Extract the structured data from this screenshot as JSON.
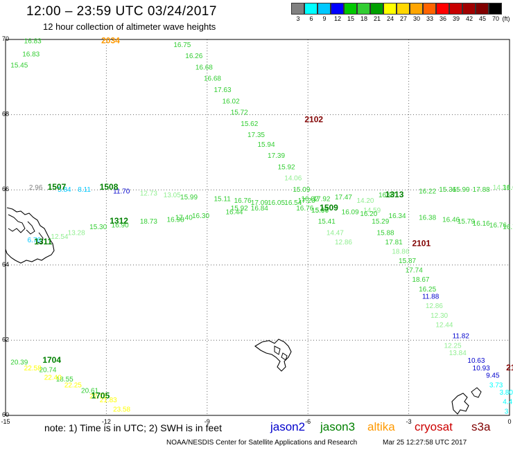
{
  "title": "12:00 – 23:59 UTC 03/24/2017",
  "subtitle": "12 hour collection of altimeter wave heights",
  "legend": {
    "unit": "(ft)",
    "levels": [
      "3",
      "6",
      "9",
      "12",
      "15",
      "18",
      "21",
      "24",
      "27",
      "30",
      "33",
      "36",
      "39",
      "42",
      "45",
      "70"
    ],
    "colors": [
      "#808080",
      "#00ffff",
      "#00c8ff",
      "#0000ff",
      "#00c800",
      "#32cd32",
      "#00a000",
      "#ffff00",
      "#ffd700",
      "#ffa500",
      "#ff6400",
      "#ff0000",
      "#c80000",
      "#a00000",
      "#800000",
      "#000000"
    ]
  },
  "axes": {
    "lon_ticks": [
      "-15",
      "-12",
      "-9",
      "-6",
      "-3",
      "0"
    ],
    "lat_ticks": [
      "70",
      "68",
      "66",
      "64",
      "62",
      "60"
    ]
  },
  "note": "note: 1) Time is in UTC; 2) SWH is in feet",
  "satellites": [
    {
      "name": "jason2",
      "color": "#0000cc"
    },
    {
      "name": "jason3",
      "color": "#008000"
    },
    {
      "name": "altika",
      "color": "#ff9900"
    },
    {
      "name": "cryosat",
      "color": "#cc0000"
    },
    {
      "name": "s3a",
      "color": "#800000"
    }
  ],
  "credit": "NOAA/NESDIS Center for Satellite Applications and Research",
  "timestamp": "Mar 25 12:27:58 UTC 2017",
  "passes": [
    {
      "label": "2034",
      "lon": -12.15,
      "lat": 69.9,
      "color": "#ff9900"
    },
    {
      "label": "2102",
      "lon": -6.1,
      "lat": 67.8,
      "color": "#800000"
    },
    {
      "label": "1507",
      "lon": -13.75,
      "lat": 66.0,
      "color": "#008000"
    },
    {
      "label": "1508",
      "lon": -12.2,
      "lat": 66.0,
      "color": "#008000"
    },
    {
      "label": "1312",
      "lon": -11.9,
      "lat": 65.1,
      "color": "#008000"
    },
    {
      "label": "1311",
      "lon": -14.15,
      "lat": 64.55,
      "color": "#008000"
    },
    {
      "label": "1509",
      "lon": -5.65,
      "lat": 65.45,
      "color": "#008000"
    },
    {
      "label": "1313",
      "lon": -3.7,
      "lat": 65.8,
      "color": "#008000"
    },
    {
      "label": "2101",
      "lon": -2.9,
      "lat": 64.5,
      "color": "#800000"
    },
    {
      "label": "1704",
      "lon": -13.9,
      "lat": 61.4,
      "color": "#008000"
    },
    {
      "label": "1705",
      "lon": -12.45,
      "lat": 60.45,
      "color": "#008000"
    },
    {
      "label": "21",
      "lon": -0.1,
      "lat": 61.2,
      "color": "#800000"
    }
  ],
  "points": [
    {
      "v": "16.83",
      "lon": -14.45,
      "lat": 69.9,
      "color": "#32cd32"
    },
    {
      "v": "16.83",
      "lon": -14.5,
      "lat": 69.55,
      "color": "#32cd32"
    },
    {
      "v": "15.45",
      "lon": -14.85,
      "lat": 69.25,
      "color": "#32cd32"
    },
    {
      "v": "16.75",
      "lon": -10.0,
      "lat": 69.8,
      "color": "#32cd32"
    },
    {
      "v": "16.26",
      "lon": -9.65,
      "lat": 69.5,
      "color": "#32cd32"
    },
    {
      "v": "16.68",
      "lon": -9.35,
      "lat": 69.2,
      "color": "#32cd32"
    },
    {
      "v": "16.68",
      "lon": -9.1,
      "lat": 68.9,
      "color": "#32cd32"
    },
    {
      "v": "17.63",
      "lon": -8.8,
      "lat": 68.6,
      "color": "#32cd32"
    },
    {
      "v": "16.02",
      "lon": -8.55,
      "lat": 68.3,
      "color": "#32cd32"
    },
    {
      "v": "15.72",
      "lon": -8.3,
      "lat": 68.0,
      "color": "#32cd32"
    },
    {
      "v": "15.62",
      "lon": -8.0,
      "lat": 67.7,
      "color": "#32cd32"
    },
    {
      "v": "17.35",
      "lon": -7.8,
      "lat": 67.4,
      "color": "#32cd32"
    },
    {
      "v": "15.94",
      "lon": -7.5,
      "lat": 67.15,
      "color": "#32cd32"
    },
    {
      "v": "17.39",
      "lon": -7.2,
      "lat": 66.85,
      "color": "#32cd32"
    },
    {
      "v": "15.92",
      "lon": -6.9,
      "lat": 66.55,
      "color": "#32cd32"
    },
    {
      "v": "14.06",
      "lon": -6.7,
      "lat": 66.25,
      "color": "#90ee90"
    },
    {
      "v": "15.09",
      "lon": -6.45,
      "lat": 65.95,
      "color": "#32cd32"
    },
    {
      "v": "16.02",
      "lon": -6.2,
      "lat": 65.7,
      "color": "#32cd32"
    },
    {
      "v": "15.06",
      "lon": -5.9,
      "lat": 65.4,
      "color": "#32cd32"
    },
    {
      "v": "15.41",
      "lon": -5.7,
      "lat": 65.1,
      "color": "#32cd32"
    },
    {
      "v": "14.47",
      "lon": -5.45,
      "lat": 64.8,
      "color": "#90ee90"
    },
    {
      "v": "12.86",
      "lon": -5.2,
      "lat": 64.55,
      "color": "#90ee90"
    },
    {
      "v": "14.20",
      "lon": -4.55,
      "lat": 65.65,
      "color": "#90ee90"
    },
    {
      "v": "14.59",
      "lon": -4.35,
      "lat": 65.4,
      "color": "#90ee90"
    },
    {
      "v": "15.29",
      "lon": -4.1,
      "lat": 65.1,
      "color": "#32cd32"
    },
    {
      "v": "15.88",
      "lon": -3.95,
      "lat": 64.8,
      "color": "#32cd32"
    },
    {
      "v": "17.81",
      "lon": -3.7,
      "lat": 64.55,
      "color": "#32cd32"
    },
    {
      "v": "18.86",
      "lon": -3.5,
      "lat": 64.3,
      "color": "#90ee90"
    },
    {
      "v": "15.87",
      "lon": -3.3,
      "lat": 64.05,
      "color": "#32cd32"
    },
    {
      "v": "17.74",
      "lon": -3.1,
      "lat": 63.8,
      "color": "#32cd32"
    },
    {
      "v": "18.67",
      "lon": -2.9,
      "lat": 63.55,
      "color": "#32cd32"
    },
    {
      "v": "16.25",
      "lon": -2.7,
      "lat": 63.3,
      "color": "#32cd32"
    },
    {
      "v": "11.88",
      "lon": -2.6,
      "lat": 63.1,
      "color": "#0000cc"
    },
    {
      "v": "12.86",
      "lon": -2.5,
      "lat": 62.85,
      "color": "#90ee90"
    },
    {
      "v": "12.30",
      "lon": -2.35,
      "lat": 62.6,
      "color": "#90ee90"
    },
    {
      "v": "12.44",
      "lon": -2.2,
      "lat": 62.35,
      "color": "#90ee90"
    },
    {
      "v": "11.82",
      "lon": -1.7,
      "lat": 62.05,
      "color": "#0000cc"
    },
    {
      "v": "12.25",
      "lon": -1.95,
      "lat": 61.8,
      "color": "#90ee90"
    },
    {
      "v": "13.84",
      "lon": -1.8,
      "lat": 61.6,
      "color": "#90ee90"
    },
    {
      "v": "10.63",
      "lon": -1.25,
      "lat": 61.4,
      "color": "#0000cc"
    },
    {
      "v": "10.93",
      "lon": -1.1,
      "lat": 61.2,
      "color": "#0000cc"
    },
    {
      "v": "9.45",
      "lon": -0.7,
      "lat": 61.0,
      "color": "#0000cc"
    },
    {
      "v": "3.73",
      "lon": -0.6,
      "lat": 60.75,
      "color": "#00ffff"
    },
    {
      "v": "3.80",
      "lon": -0.3,
      "lat": 60.55,
      "color": "#00ffff"
    },
    {
      "v": "4.4",
      "lon": -0.2,
      "lat": 60.3,
      "color": "#00ffff"
    },
    {
      "v": "3",
      "lon": -0.15,
      "lat": 60.05,
      "color": "#00ffff"
    },
    {
      "v": "2.96",
      "lon": -14.3,
      "lat": 66.0,
      "color": "#808080"
    },
    {
      "v": "5.84",
      "lon": -13.45,
      "lat": 65.95,
      "color": "#00c8ff"
    },
    {
      "v": "8.11",
      "lon": -12.85,
      "lat": 65.95,
      "color": "#00c8ff"
    },
    {
      "v": "11.70",
      "lon": -11.8,
      "lat": 65.9,
      "color": "#0000cc"
    },
    {
      "v": "12.73",
      "lon": -11.0,
      "lat": 65.85,
      "color": "#90ee90"
    },
    {
      "v": "13.05",
      "lon": -10.3,
      "lat": 65.8,
      "color": "#90ee90"
    },
    {
      "v": "15.99",
      "lon": -9.8,
      "lat": 65.75,
      "color": "#32cd32"
    },
    {
      "v": "15.11",
      "lon": -8.8,
      "lat": 65.7,
      "color": "#32cd32"
    },
    {
      "v": "16.76",
      "lon": -8.2,
      "lat": 65.65,
      "color": "#32cd32"
    },
    {
      "v": "17.09",
      "lon": -7.7,
      "lat": 65.6,
      "color": "#32cd32"
    },
    {
      "v": "16.05",
      "lon": -7.2,
      "lat": 65.6,
      "color": "#32cd32"
    },
    {
      "v": "16.54",
      "lon": -6.7,
      "lat": 65.6,
      "color": "#32cd32"
    },
    {
      "v": "17.20",
      "lon": -6.3,
      "lat": 65.65,
      "color": "#32cd32"
    },
    {
      "v": "17.92",
      "lon": -5.85,
      "lat": 65.7,
      "color": "#32cd32"
    },
    {
      "v": "17.47",
      "lon": -5.2,
      "lat": 65.75,
      "color": "#32cd32"
    },
    {
      "v": "16.97",
      "lon": -3.9,
      "lat": 65.8,
      "color": "#32cd32"
    },
    {
      "v": "16.22",
      "lon": -2.7,
      "lat": 65.9,
      "color": "#32cd32"
    },
    {
      "v": "15.36",
      "lon": -2.1,
      "lat": 65.95,
      "color": "#32cd32"
    },
    {
      "v": "15.99",
      "lon": -1.7,
      "lat": 65.95,
      "color": "#32cd32"
    },
    {
      "v": "17.88",
      "lon": -1.1,
      "lat": 65.95,
      "color": "#32cd32"
    },
    {
      "v": "14.31",
      "lon": -0.5,
      "lat": 66.0,
      "color": "#90ee90"
    },
    {
      "v": "16.0",
      "lon": -0.2,
      "lat": 66.0,
      "color": "#32cd32"
    },
    {
      "v": "15.92",
      "lon": -8.3,
      "lat": 65.45,
      "color": "#32cd32"
    },
    {
      "v": "16.84",
      "lon": -7.7,
      "lat": 65.45,
      "color": "#32cd32"
    },
    {
      "v": "16.76",
      "lon": -6.35,
      "lat": 65.45,
      "color": "#32cd32"
    },
    {
      "v": "15.97",
      "lon": -5.9,
      "lat": 65.4,
      "color": "#32cd32"
    },
    {
      "v": "16.09",
      "lon": -5.0,
      "lat": 65.35,
      "color": "#32cd32"
    },
    {
      "v": "16.20",
      "lon": -4.45,
      "lat": 65.3,
      "color": "#32cd32"
    },
    {
      "v": "16.34",
      "lon": -3.6,
      "lat": 65.25,
      "color": "#32cd32"
    },
    {
      "v": "16.38",
      "lon": -2.7,
      "lat": 65.2,
      "color": "#32cd32"
    },
    {
      "v": "16.46",
      "lon": -2.0,
      "lat": 65.15,
      "color": "#32cd32"
    },
    {
      "v": "15.79",
      "lon": -1.55,
      "lat": 65.1,
      "color": "#32cd32"
    },
    {
      "v": "16.16",
      "lon": -1.1,
      "lat": 65.05,
      "color": "#32cd32"
    },
    {
      "v": "16.76",
      "lon": -0.6,
      "lat": 65.0,
      "color": "#32cd32"
    },
    {
      "v": "16.76",
      "lon": -0.2,
      "lat": 64.95,
      "color": "#32cd32"
    },
    {
      "v": "6.76",
      "lon": -14.35,
      "lat": 64.6,
      "color": "#00c8ff"
    },
    {
      "v": "12.54",
      "lon": -13.65,
      "lat": 64.7,
      "color": "#90ee90"
    },
    {
      "v": "13.28",
      "lon": -13.15,
      "lat": 64.8,
      "color": "#90ee90"
    },
    {
      "v": "15.30",
      "lon": -12.5,
      "lat": 64.95,
      "color": "#32cd32"
    },
    {
      "v": "16.90",
      "lon": -11.85,
      "lat": 65.0,
      "color": "#32cd32"
    },
    {
      "v": "18.73",
      "lon": -11.0,
      "lat": 65.1,
      "color": "#32cd32"
    },
    {
      "v": "16.98",
      "lon": -10.2,
      "lat": 65.15,
      "color": "#32cd32"
    },
    {
      "v": "17.40",
      "lon": -9.95,
      "lat": 65.2,
      "color": "#32cd32"
    },
    {
      "v": "16.30",
      "lon": -9.45,
      "lat": 65.25,
      "color": "#32cd32"
    },
    {
      "v": "16.44",
      "lon": -8.45,
      "lat": 65.35,
      "color": "#32cd32"
    },
    {
      "v": "20.39",
      "lon": -14.85,
      "lat": 61.35,
      "color": "#32cd32"
    },
    {
      "v": "20.74",
      "lon": -14.0,
      "lat": 61.15,
      "color": "#32cd32"
    },
    {
      "v": "18.55",
      "lon": -13.5,
      "lat": 60.9,
      "color": "#32cd32"
    },
    {
      "v": "20.61",
      "lon": -12.75,
      "lat": 60.6,
      "color": "#32cd32"
    },
    {
      "v": "22.58",
      "lon": -14.45,
      "lat": 61.2,
      "color": "#ffff00"
    },
    {
      "v": "22.40",
      "lon": -13.85,
      "lat": 60.95,
      "color": "#ffff00"
    },
    {
      "v": "22.25",
      "lon": -13.25,
      "lat": 60.75,
      "color": "#ffff00"
    },
    {
      "v": "22.76",
      "lon": -12.5,
      "lat": 60.45,
      "color": "#ffff00"
    },
    {
      "v": "21.83",
      "lon": -12.2,
      "lat": 60.35,
      "color": "#ffff00"
    },
    {
      "v": "23.58",
      "lon": -11.8,
      "lat": 60.1,
      "color": "#ffff00"
    }
  ]
}
